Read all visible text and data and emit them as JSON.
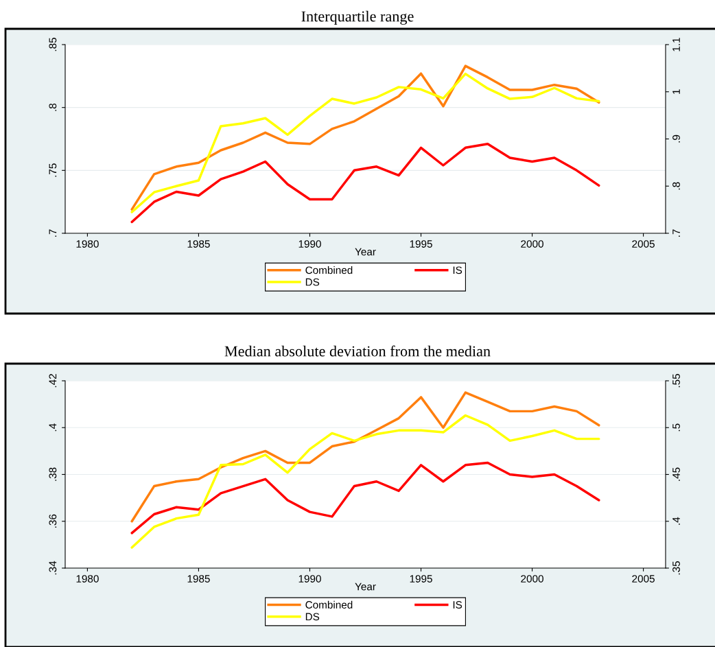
{
  "chart_data": [
    {
      "type": "line",
      "title": "Interquartile range",
      "xlabel": "Year",
      "x": [
        1982,
        1983,
        1984,
        1985,
        1986,
        1987,
        1988,
        1989,
        1990,
        1991,
        1992,
        1993,
        1994,
        1995,
        1996,
        1997,
        1998,
        1999,
        2000,
        2001,
        2002,
        2003
      ],
      "xlim": [
        1979,
        2006
      ],
      "xticks": [
        1980,
        1985,
        1990,
        1995,
        2000,
        2005
      ],
      "ylim": [
        0.7,
        0.85
      ],
      "yticks": [
        {
          "value": 0.7,
          "label": ".7"
        },
        {
          "value": 0.75,
          "label": ".75"
        },
        {
          "value": 0.8,
          "label": ".8"
        },
        {
          "value": 0.85,
          "label": ".85"
        }
      ],
      "y2lim": [
        0.7,
        1.1
      ],
      "y2ticks": [
        {
          "value": 0.7,
          "label": ".7"
        },
        {
          "value": 0.8,
          "label": ".8"
        },
        {
          "value": 0.9,
          "label": ".9"
        },
        {
          "value": 1.0,
          "label": "1"
        },
        {
          "value": 1.1,
          "label": "1.1"
        }
      ],
      "grid": "y",
      "legend": "bottom",
      "marker": "none",
      "line_style": "solid",
      "series": [
        {
          "name": "Combined",
          "color": "#ff7f0e",
          "values": [
            0.719,
            0.747,
            0.753,
            0.756,
            0.766,
            0.772,
            0.78,
            0.772,
            0.771,
            0.783,
            0.789,
            0.799,
            0.809,
            0.827,
            0.801,
            0.833,
            0.824,
            0.814,
            0.814,
            0.818,
            0.815,
            0.804
          ]
        },
        {
          "name": "IS",
          "color": "#ff0000",
          "values": [
            0.709,
            0.725,
            0.733,
            0.73,
            0.743,
            0.749,
            0.757,
            0.739,
            0.727,
            0.727,
            0.75,
            0.753,
            0.746,
            0.768,
            0.754,
            0.768,
            0.771,
            0.76,
            0.757,
            0.76,
            0.75,
            0.738
          ]
        },
        {
          "name": "DS",
          "color": "#ffff00",
          "axis": "y2",
          "values": [
            0.745,
            0.787,
            0.8,
            0.812,
            0.927,
            0.933,
            0.944,
            0.909,
            0.949,
            0.985,
            0.975,
            0.988,
            1.01,
            1.005,
            0.986,
            1.038,
            1.007,
            0.985,
            0.989,
            1.008,
            0.986,
            0.98
          ]
        }
      ]
    },
    {
      "type": "line",
      "title": "Median absolute deviation from the median",
      "xlabel": "Year",
      "x": [
        1982,
        1983,
        1984,
        1985,
        1986,
        1987,
        1988,
        1989,
        1990,
        1991,
        1992,
        1993,
        1994,
        1995,
        1996,
        1997,
        1998,
        1999,
        2000,
        2001,
        2002,
        2003
      ],
      "xlim": [
        1979,
        2006
      ],
      "xticks": [
        1980,
        1985,
        1990,
        1995,
        2000,
        2005
      ],
      "ylim": [
        0.34,
        0.42
      ],
      "yticks": [
        {
          "value": 0.34,
          "label": ".34"
        },
        {
          "value": 0.36,
          "label": ".36"
        },
        {
          "value": 0.38,
          "label": ".38"
        },
        {
          "value": 0.4,
          "label": ".4"
        },
        {
          "value": 0.42,
          "label": ".42"
        }
      ],
      "y2lim": [
        0.35,
        0.55
      ],
      "y2ticks": [
        {
          "value": 0.35,
          "label": ".35"
        },
        {
          "value": 0.4,
          "label": ".4"
        },
        {
          "value": 0.45,
          "label": ".45"
        },
        {
          "value": 0.5,
          "label": ".5"
        },
        {
          "value": 0.55,
          "label": ".55"
        }
      ],
      "grid": "y",
      "legend": "bottom",
      "marker": "none",
      "line_style": "solid",
      "series": [
        {
          "name": "Combined",
          "color": "#ff7f0e",
          "values": [
            0.36,
            0.375,
            0.377,
            0.378,
            0.383,
            0.387,
            0.39,
            0.385,
            0.385,
            0.392,
            0.394,
            0.399,
            0.404,
            0.413,
            0.4,
            0.415,
            0.411,
            0.407,
            0.407,
            0.409,
            0.407,
            0.401
          ]
        },
        {
          "name": "IS",
          "color": "#ff0000",
          "values": [
            0.355,
            0.363,
            0.366,
            0.365,
            0.372,
            0.375,
            0.378,
            0.369,
            0.364,
            0.362,
            0.375,
            0.377,
            0.373,
            0.384,
            0.377,
            0.384,
            0.385,
            0.38,
            0.379,
            0.38,
            0.375,
            0.369
          ]
        },
        {
          "name": "DS",
          "color": "#ffff00",
          "axis": "y2",
          "values": [
            0.372,
            0.394,
            0.403,
            0.407,
            0.46,
            0.461,
            0.471,
            0.452,
            0.477,
            0.494,
            0.486,
            0.493,
            0.497,
            0.497,
            0.495,
            0.513,
            0.503,
            0.486,
            0.491,
            0.497,
            0.488,
            0.488
          ]
        }
      ]
    }
  ]
}
